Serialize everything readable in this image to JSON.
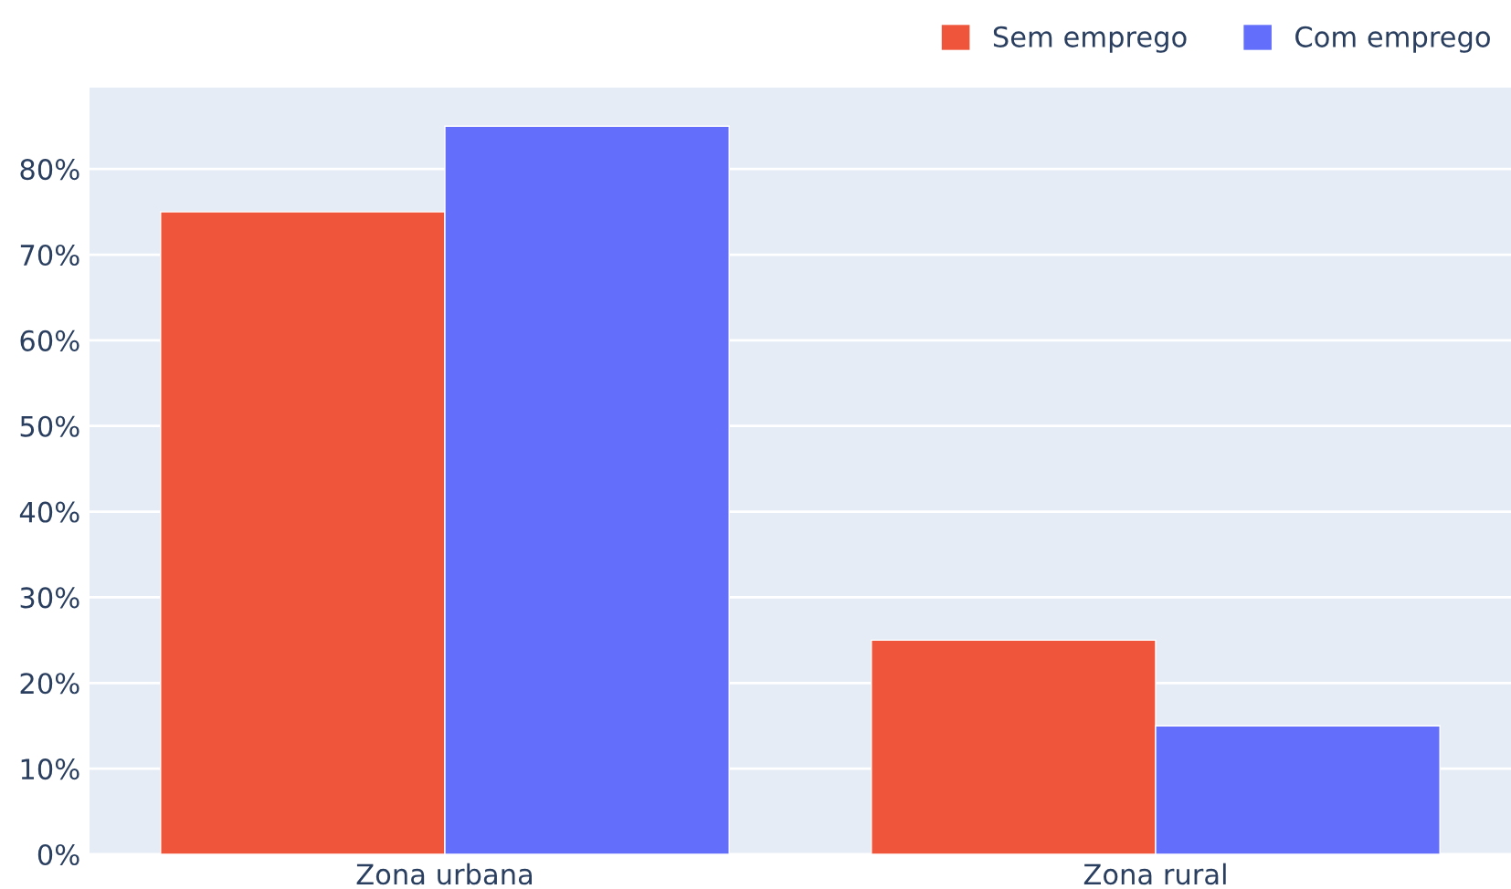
{
  "chart_data": {
    "type": "bar",
    "categories": [
      "Zona urbana",
      "Zona rural"
    ],
    "series": [
      {
        "name": "Sem emprego",
        "color": "#ef553b",
        "values": [
          75,
          25
        ]
      },
      {
        "name": "Com emprego",
        "color": "#636efa",
        "values": [
          85,
          15
        ]
      }
    ],
    "ylim": [
      0,
      89.5
    ],
    "yticks": [
      {
        "value": 0,
        "label": "0%"
      },
      {
        "value": 10,
        "label": "10%"
      },
      {
        "value": 20,
        "label": "20%"
      },
      {
        "value": 30,
        "label": "30%"
      },
      {
        "value": 40,
        "label": "40%"
      },
      {
        "value": 50,
        "label": "50%"
      },
      {
        "value": 60,
        "label": "60%"
      },
      {
        "value": 70,
        "label": "70%"
      },
      {
        "value": 80,
        "label": "80%"
      }
    ],
    "grid": "y",
    "legend": "top right"
  }
}
